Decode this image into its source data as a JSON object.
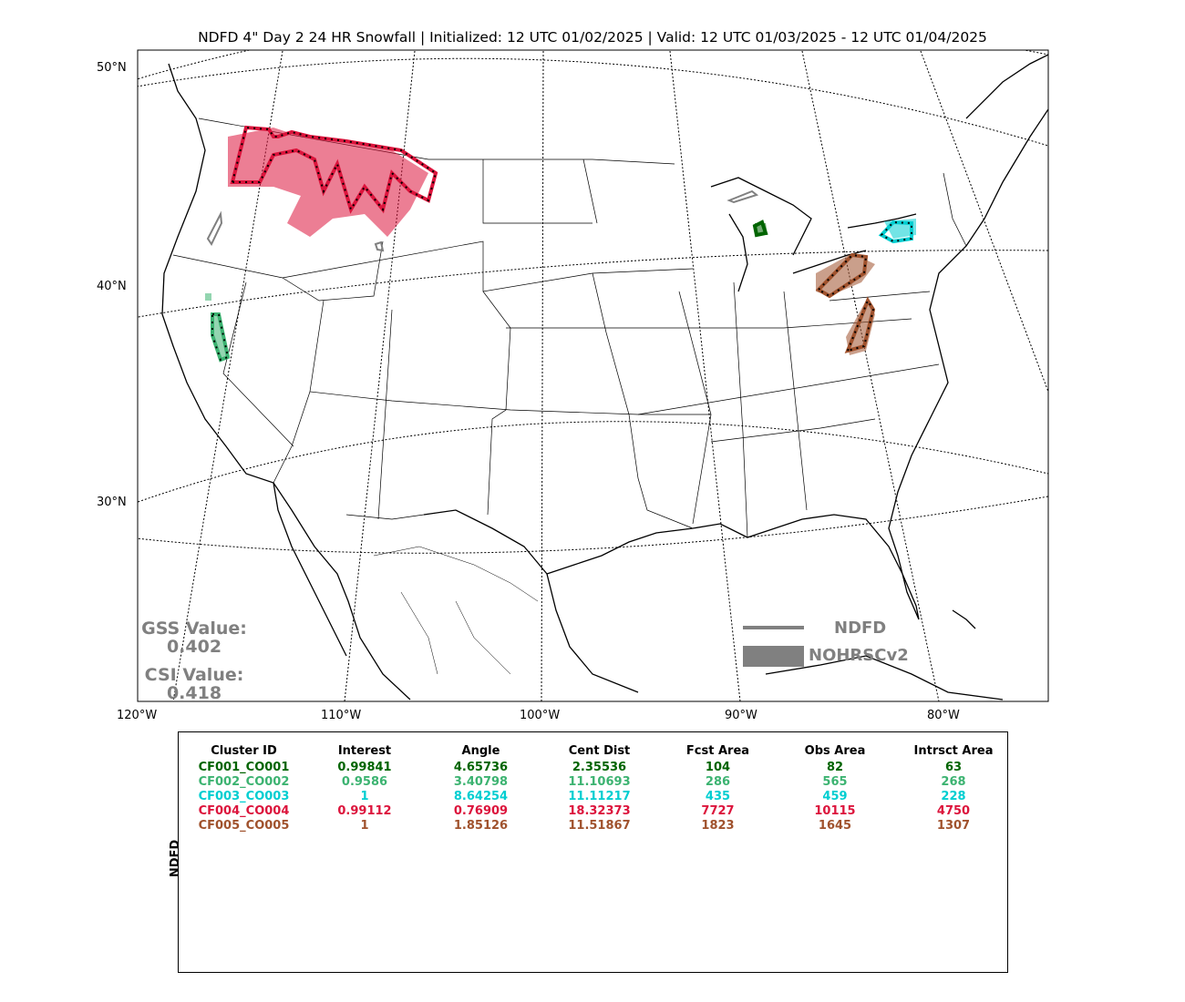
{
  "title": "NDFD 4\" Day 2 24 HR Snowfall | Initialized: 12 UTC 01/02/2025 | Valid: 12 UTC 01/03/2025 - 12 UTC 01/04/2025",
  "lat_labels": [
    "50°N",
    "40°N",
    "30°N"
  ],
  "lon_labels": [
    "120°W",
    "110°W",
    "100°W",
    "90°W",
    "80°W"
  ],
  "stats": {
    "gss_label": "GSS Value:",
    "gss_value": "0.402",
    "csi_label": "CSI Value:",
    "csi_value": "0.418"
  },
  "legend": {
    "line_label": "NDFD",
    "fill_label": "NOHRSCv2",
    "color": "#808080"
  },
  "table": {
    "y_label": "NDFD",
    "headers": [
      "Cluster ID",
      "Interest",
      "Angle",
      "Cent Dist",
      "Fcst Area",
      "Obs Area",
      "Intrsct Area"
    ],
    "rows": [
      {
        "color": "#006400",
        "cells": [
          "CF001_CO001",
          "0.99841",
          "4.65736",
          "2.35536",
          "104",
          "82",
          "63"
        ]
      },
      {
        "color": "#3cb371",
        "cells": [
          "CF002_CO002",
          "0.9586",
          "3.40798",
          "11.10693",
          "286",
          "565",
          "268"
        ]
      },
      {
        "color": "#00ced1",
        "cells": [
          "CF003_CO003",
          "1",
          "8.64254",
          "11.11217",
          "435",
          "459",
          "228"
        ]
      },
      {
        "color": "#dc143c",
        "cells": [
          "CF004_CO004",
          "0.99112",
          "0.76909",
          "18.32373",
          "7727",
          "10115",
          "4750"
        ]
      },
      {
        "color": "#a0522d",
        "cells": [
          "CF005_CO005",
          "1",
          "1.85126",
          "11.51867",
          "1823",
          "1645",
          "1307"
        ]
      }
    ]
  }
}
